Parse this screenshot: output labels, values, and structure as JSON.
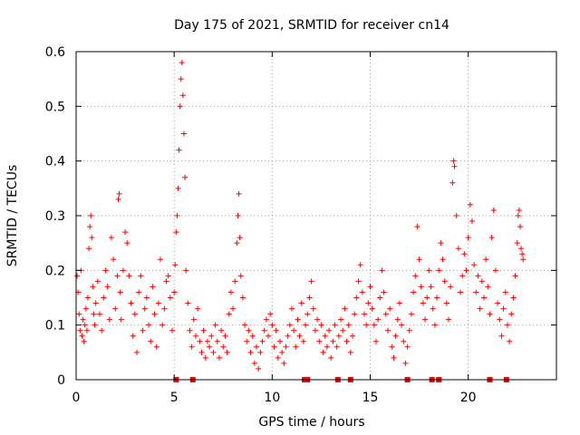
{
  "chart_data": {
    "type": "scatter",
    "title": "Day 175 of 2021, SRMTID for receiver cn14",
    "xlabel": "GPS time / hours",
    "ylabel": "SRMTID / TECUs",
    "xlim": [
      0,
      24.5
    ],
    "ylim": [
      0,
      0.6
    ],
    "x_ticks": [
      0,
      5,
      10,
      15,
      20
    ],
    "x_tick_labels": [
      "0",
      "5",
      "10",
      "15",
      "20"
    ],
    "y_ticks": [
      0,
      0.1,
      0.2,
      0.3,
      0.4,
      0.5,
      0.6
    ],
    "y_tick_labels": [
      "0",
      "0.1",
      "0.2",
      "0.3",
      "0.4",
      "0.5",
      "0.6"
    ],
    "grid": true,
    "marker": "plus",
    "color": "#ff0000",
    "series": [
      {
        "name": "SRMTID",
        "points": [
          [
            0.05,
            0.19
          ],
          [
            0.1,
            0.16
          ],
          [
            0.15,
            0.12
          ],
          [
            0.2,
            0.09
          ],
          [
            0.25,
            0.2
          ],
          [
            0.3,
            0.08
          ],
          [
            0.35,
            0.11
          ],
          [
            0.4,
            0.07
          ],
          [
            0.45,
            0.1
          ],
          [
            0.5,
            0.13
          ],
          [
            0.55,
            0.09
          ],
          [
            0.6,
            0.15
          ],
          [
            0.65,
            0.24
          ],
          [
            0.7,
            0.28
          ],
          [
            0.75,
            0.3
          ],
          [
            0.8,
            0.26
          ],
          [
            0.85,
            0.17
          ],
          [
            0.9,
            0.12
          ],
          [
            0.95,
            0.1
          ],
          [
            1.0,
            0.14
          ],
          [
            1.1,
            0.18
          ],
          [
            1.2,
            0.12
          ],
          [
            1.3,
            0.09
          ],
          [
            1.4,
            0.15
          ],
          [
            1.5,
            0.2
          ],
          [
            1.6,
            0.17
          ],
          [
            1.7,
            0.11
          ],
          [
            1.8,
            0.26
          ],
          [
            1.9,
            0.22
          ],
          [
            2.0,
            0.13
          ],
          [
            2.1,
            0.19
          ],
          [
            2.15,
            0.33
          ],
          [
            2.2,
            0.34
          ],
          [
            2.25,
            0.16
          ],
          [
            2.3,
            0.11
          ],
          [
            2.4,
            0.2
          ],
          [
            2.5,
            0.27
          ],
          [
            2.6,
            0.25
          ],
          [
            2.7,
            0.19
          ],
          [
            2.8,
            0.14
          ],
          [
            2.9,
            0.08
          ],
          [
            3.0,
            0.12
          ],
          [
            3.1,
            0.05
          ],
          [
            3.2,
            0.16
          ],
          [
            3.3,
            0.19
          ],
          [
            3.4,
            0.09
          ],
          [
            3.5,
            0.13
          ],
          [
            3.6,
            0.15
          ],
          [
            3.7,
            0.1
          ],
          [
            3.8,
            0.07
          ],
          [
            3.9,
            0.17
          ],
          [
            4.0,
            0.12
          ],
          [
            4.1,
            0.06
          ],
          [
            4.2,
            0.14
          ],
          [
            4.3,
            0.22
          ],
          [
            4.4,
            0.1
          ],
          [
            4.5,
            0.13
          ],
          [
            4.6,
            0.18
          ],
          [
            4.7,
            0.19
          ],
          [
            4.8,
            0.15
          ],
          [
            4.9,
            0.09
          ],
          [
            5.0,
            0.16
          ],
          [
            5.05,
            0.21
          ],
          [
            5.1,
            0.27
          ],
          [
            5.15,
            0.3
          ],
          [
            5.2,
            0.35
          ],
          [
            5.25,
            0.42
          ],
          [
            5.3,
            0.5
          ],
          [
            5.35,
            0.55
          ],
          [
            5.4,
            0.58
          ],
          [
            5.45,
            0.52
          ],
          [
            5.5,
            0.45
          ],
          [
            5.55,
            0.37
          ],
          [
            5.6,
            0.2
          ],
          [
            5.7,
            0.14
          ],
          [
            5.8,
            0.09
          ],
          [
            5.9,
            0.06
          ],
          [
            6.0,
            0.11
          ],
          [
            6.1,
            0.08
          ],
          [
            6.2,
            0.13
          ],
          [
            6.3,
            0.07
          ],
          [
            6.4,
            0.05
          ],
          [
            6.5,
            0.09
          ],
          [
            6.6,
            0.04
          ],
          [
            6.7,
            0.07
          ],
          [
            6.8,
            0.06
          ],
          [
            6.9,
            0.08
          ],
          [
            7.0,
            0.05
          ],
          [
            7.1,
            0.1
          ],
          [
            7.2,
            0.07
          ],
          [
            7.3,
            0.04
          ],
          [
            7.4,
            0.09
          ],
          [
            7.5,
            0.06
          ],
          [
            7.6,
            0.08
          ],
          [
            7.7,
            0.05
          ],
          [
            7.8,
            0.12
          ],
          [
            7.9,
            0.16
          ],
          [
            8.0,
            0.13
          ],
          [
            8.1,
            0.18
          ],
          [
            8.2,
            0.25
          ],
          [
            8.25,
            0.3
          ],
          [
            8.3,
            0.34
          ],
          [
            8.35,
            0.26
          ],
          [
            8.4,
            0.19
          ],
          [
            8.5,
            0.15
          ],
          [
            8.6,
            0.1
          ],
          [
            8.7,
            0.07
          ],
          [
            8.8,
            0.09
          ],
          [
            8.9,
            0.05
          ],
          [
            9.0,
            0.08
          ],
          [
            9.1,
            0.03
          ],
          [
            9.2,
            0.06
          ],
          [
            9.3,
            0.02
          ],
          [
            9.4,
            0.05
          ],
          [
            9.5,
            0.07
          ],
          [
            9.6,
            0.09
          ],
          [
            9.7,
            0.11
          ],
          [
            9.8,
            0.08
          ],
          [
            9.9,
            0.12
          ],
          [
            10.0,
            0.1
          ],
          [
            10.1,
            0.06
          ],
          [
            10.2,
            0.09
          ],
          [
            10.3,
            0.04
          ],
          [
            10.4,
            0.07
          ],
          [
            10.5,
            0.05
          ],
          [
            10.6,
            0.03
          ],
          [
            10.7,
            0.06
          ],
          [
            10.8,
            0.08
          ],
          [
            10.9,
            0.1
          ],
          [
            11.0,
            0.13
          ],
          [
            11.1,
            0.09
          ],
          [
            11.2,
            0.06
          ],
          [
            11.3,
            0.11
          ],
          [
            11.4,
            0.08
          ],
          [
            11.5,
            0.14
          ],
          [
            11.6,
            0.07
          ],
          [
            11.7,
            0.1
          ],
          [
            11.8,
            0.12
          ],
          [
            11.9,
            0.15
          ],
          [
            12.0,
            0.18
          ],
          [
            12.1,
            0.13
          ],
          [
            12.2,
            0.09
          ],
          [
            12.3,
            0.11
          ],
          [
            12.4,
            0.07
          ],
          [
            12.5,
            0.1
          ],
          [
            12.6,
            0.05
          ],
          [
            12.7,
            0.08
          ],
          [
            12.8,
            0.06
          ],
          [
            12.9,
            0.09
          ],
          [
            13.0,
            0.04
          ],
          [
            13.1,
            0.07
          ],
          [
            13.2,
            0.1
          ],
          [
            13.3,
            0.06
          ],
          [
            13.4,
            0.08
          ],
          [
            13.5,
            0.11
          ],
          [
            13.6,
            0.09
          ],
          [
            13.7,
            0.13
          ],
          [
            13.8,
            0.07
          ],
          [
            13.9,
            0.1
          ],
          [
            14.0,
            0.05
          ],
          [
            14.1,
            0.08
          ],
          [
            14.2,
            0.12
          ],
          [
            14.3,
            0.15
          ],
          [
            14.4,
            0.18
          ],
          [
            14.5,
            0.21
          ],
          [
            14.6,
            0.16
          ],
          [
            14.7,
            0.12
          ],
          [
            14.8,
            0.1
          ],
          [
            14.9,
            0.14
          ],
          [
            15.0,
            0.17
          ],
          [
            15.1,
            0.13
          ],
          [
            15.2,
            0.1
          ],
          [
            15.3,
            0.07
          ],
          [
            15.4,
            0.11
          ],
          [
            15.5,
            0.15
          ],
          [
            15.6,
            0.2
          ],
          [
            15.7,
            0.16
          ],
          [
            15.8,
            0.12
          ],
          [
            15.9,
            0.09
          ],
          [
            16.0,
            0.13
          ],
          [
            16.1,
            0.06
          ],
          [
            16.2,
            0.04
          ],
          [
            16.3,
            0.08
          ],
          [
            16.4,
            0.11
          ],
          [
            16.5,
            0.14
          ],
          [
            16.6,
            0.1
          ],
          [
            16.7,
            0.07
          ],
          [
            16.8,
            0.03
          ],
          [
            16.9,
            0.06
          ],
          [
            17.0,
            0.09
          ],
          [
            17.1,
            0.12
          ],
          [
            17.2,
            0.16
          ],
          [
            17.3,
            0.19
          ],
          [
            17.4,
            0.28
          ],
          [
            17.5,
            0.22
          ],
          [
            17.6,
            0.17
          ],
          [
            17.7,
            0.14
          ],
          [
            17.8,
            0.11
          ],
          [
            17.9,
            0.15
          ],
          [
            18.0,
            0.2
          ],
          [
            18.1,
            0.17
          ],
          [
            18.2,
            0.13
          ],
          [
            18.3,
            0.1
          ],
          [
            18.4,
            0.15
          ],
          [
            18.5,
            0.2
          ],
          [
            18.6,
            0.25
          ],
          [
            18.7,
            0.22
          ],
          [
            18.8,
            0.18
          ],
          [
            18.9,
            0.14
          ],
          [
            19.0,
            0.11
          ],
          [
            19.1,
            0.17
          ],
          [
            19.2,
            0.36
          ],
          [
            19.25,
            0.4
          ],
          [
            19.3,
            0.39
          ],
          [
            19.4,
            0.3
          ],
          [
            19.5,
            0.24
          ],
          [
            19.6,
            0.16
          ],
          [
            19.7,
            0.19
          ],
          [
            19.8,
            0.23
          ],
          [
            19.9,
            0.2
          ],
          [
            20.0,
            0.26
          ],
          [
            20.1,
            0.32
          ],
          [
            20.2,
            0.29
          ],
          [
            20.3,
            0.21
          ],
          [
            20.4,
            0.16
          ],
          [
            20.5,
            0.19
          ],
          [
            20.6,
            0.13
          ],
          [
            20.7,
            0.18
          ],
          [
            20.8,
            0.15
          ],
          [
            20.9,
            0.22
          ],
          [
            21.0,
            0.17
          ],
          [
            21.1,
            0.12
          ],
          [
            21.2,
            0.26
          ],
          [
            21.3,
            0.31
          ],
          [
            21.4,
            0.2
          ],
          [
            21.5,
            0.14
          ],
          [
            21.6,
            0.11
          ],
          [
            21.7,
            0.08
          ],
          [
            21.8,
            0.13
          ],
          [
            21.9,
            0.16
          ],
          [
            22.0,
            0.1
          ],
          [
            22.1,
            0.07
          ],
          [
            22.2,
            0.12
          ],
          [
            22.3,
            0.15
          ],
          [
            22.4,
            0.19
          ],
          [
            22.5,
            0.25
          ],
          [
            22.55,
            0.3
          ],
          [
            22.6,
            0.31
          ],
          [
            22.65,
            0.28
          ],
          [
            22.7,
            0.24
          ],
          [
            22.75,
            0.23
          ],
          [
            22.8,
            0.22
          ]
        ]
      }
    ],
    "gap_markers_x": [
      5.1,
      5.95,
      11.65,
      11.8,
      13.35,
      14.0,
      16.9,
      18.15,
      18.5,
      21.1,
      21.95
    ]
  }
}
